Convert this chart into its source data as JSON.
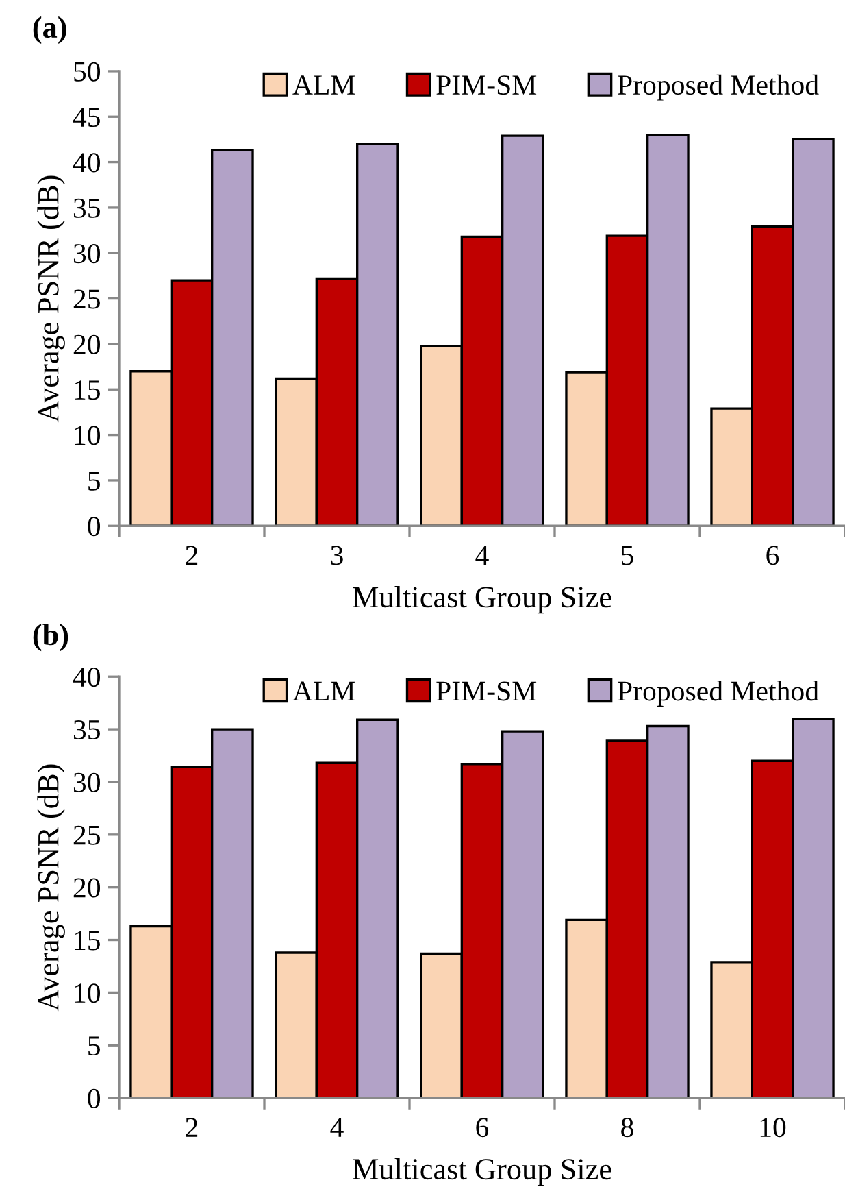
{
  "chart_data": [
    {
      "type": "bar",
      "title": "(a)",
      "xlabel": "Multicast Group Size",
      "ylabel": "Average PSNR (dB)",
      "categories": [
        "2",
        "3",
        "4",
        "5",
        "6"
      ],
      "ylim": [
        0,
        50
      ],
      "yticks": [
        0,
        5,
        10,
        15,
        20,
        25,
        30,
        35,
        40,
        45,
        50
      ],
      "grid": false,
      "legend": "top right",
      "series": [
        {
          "name": "ALM",
          "color": "#fad4b4",
          "values": [
            17.0,
            16.2,
            19.8,
            16.9,
            12.9
          ]
        },
        {
          "name": "PIM-SM",
          "color": "#c00000",
          "values": [
            27.0,
            27.2,
            31.8,
            31.9,
            32.9
          ]
        },
        {
          "name": "Proposed Method",
          "color": "#b2a2c7",
          "values": [
            41.3,
            42.0,
            42.9,
            43.0,
            42.5
          ]
        }
      ]
    },
    {
      "type": "bar",
      "title": "(b)",
      "xlabel": "Multicast Group Size",
      "ylabel": "Average PSNR (dB)",
      "categories": [
        "2",
        "4",
        "6",
        "8",
        "10"
      ],
      "ylim": [
        0,
        40
      ],
      "yticks": [
        0,
        5,
        10,
        15,
        20,
        25,
        30,
        35,
        40
      ],
      "grid": false,
      "legend": "top right",
      "series": [
        {
          "name": "ALM",
          "color": "#fad4b4",
          "values": [
            16.3,
            13.8,
            13.7,
            16.9,
            12.9
          ]
        },
        {
          "name": "PIM-SM",
          "color": "#c00000",
          "values": [
            31.4,
            31.8,
            31.7,
            33.9,
            32.0
          ]
        },
        {
          "name": "Proposed Method",
          "color": "#b2a2c7",
          "values": [
            35.0,
            35.9,
            34.8,
            35.3,
            36.0
          ]
        }
      ]
    }
  ]
}
